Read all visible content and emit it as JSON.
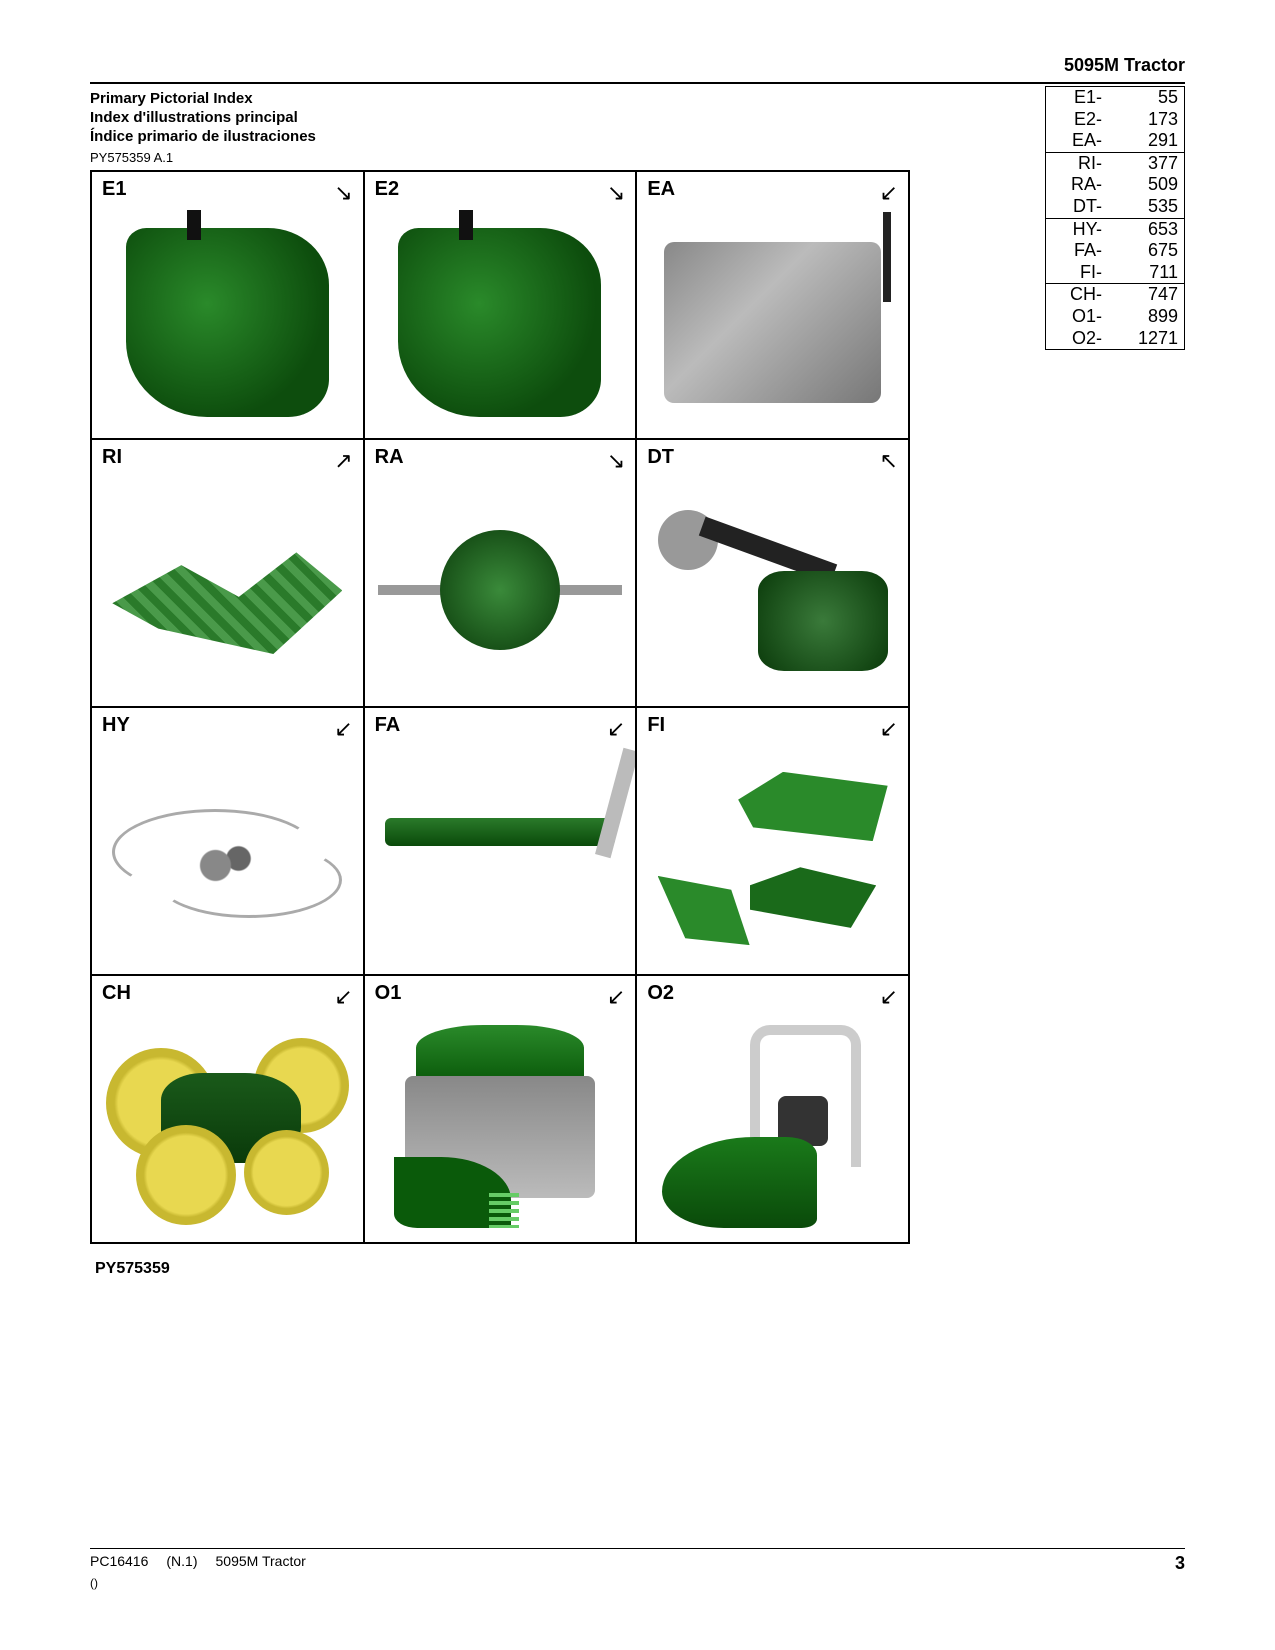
{
  "header": {
    "product": "5095M Tractor"
  },
  "titles": {
    "en": "Primary Pictorial Index",
    "fr": "Index d'illustrations principal",
    "es": "Índice primario de ilustraciones"
  },
  "subcode": "PY575359 A.1",
  "bottom_code": "PY575359",
  "index": {
    "groups": [
      [
        {
          "code": "E1-",
          "page": "55"
        },
        {
          "code": "E2-",
          "page": "173"
        },
        {
          "code": "EA-",
          "page": "291"
        }
      ],
      [
        {
          "code": "RI-",
          "page": "377"
        },
        {
          "code": "RA-",
          "page": "509"
        },
        {
          "code": "DT-",
          "page": "535"
        }
      ],
      [
        {
          "code": "HY-",
          "page": "653"
        },
        {
          "code": "FA-",
          "page": "675"
        },
        {
          "code": "FI-",
          "page": "711"
        }
      ],
      [
        {
          "code": "CH-",
          "page": "747"
        },
        {
          "code": "O1-",
          "page": "899"
        },
        {
          "code": "O2-",
          "page": "1271"
        }
      ]
    ]
  },
  "cells": [
    {
      "label": "E1",
      "arrow": "↘",
      "art": "engine"
    },
    {
      "label": "E2",
      "arrow": "↘",
      "art": "engine"
    },
    {
      "label": "EA",
      "arrow": "↙",
      "art": "assembly"
    },
    {
      "label": "RI",
      "arrow": "↗",
      "art": "linkage"
    },
    {
      "label": "RA",
      "arrow": "↘",
      "art": "axle"
    },
    {
      "label": "DT",
      "arrow": "↖",
      "art": "driveline"
    },
    {
      "label": "HY",
      "arrow": "↙",
      "art": "hoses"
    },
    {
      "label": "FA",
      "arrow": "↙",
      "art": "frontaxle"
    },
    {
      "label": "FI",
      "arrow": "↙",
      "art": "frame"
    },
    {
      "label": "CH",
      "arrow": "↙",
      "art": "wheels"
    },
    {
      "label": "O1",
      "arrow": "↙",
      "art": "cab"
    },
    {
      "label": "O2",
      "arrow": "↙",
      "art": "oos"
    }
  ],
  "footer": {
    "doc": "PC16416",
    "rev": "(N.1)",
    "product": "5095M Tractor",
    "sub": "()",
    "page": "3"
  }
}
